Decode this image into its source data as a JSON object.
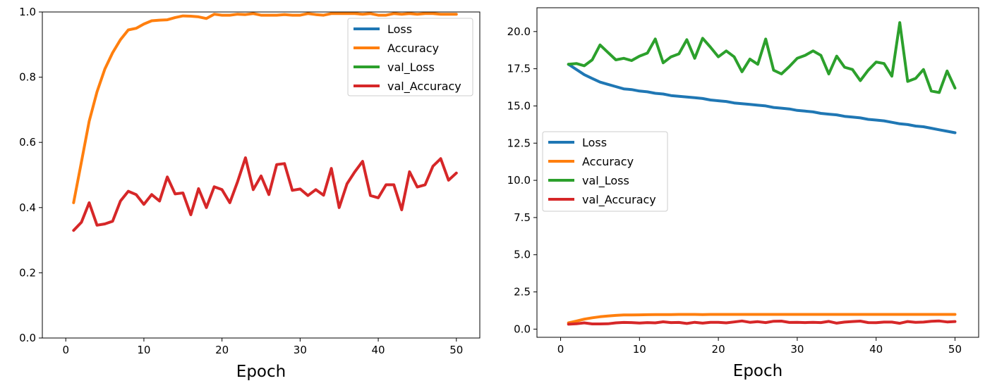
{
  "colors": {
    "Loss": "#1f77b4",
    "Accuracy": "#ff7f0e",
    "val_Loss": "#2ca02c",
    "val_Accuracy": "#d62728"
  },
  "chart_data": [
    {
      "type": "line",
      "xlabel": "Epoch",
      "ylabel": "",
      "xlim": [
        -3,
        53
      ],
      "ylim": [
        0,
        1.0
      ],
      "xticks": [
        0,
        10,
        20,
        30,
        40,
        50
      ],
      "xtick_labels": [
        "0",
        "10",
        "20",
        "30",
        "40",
        "50"
      ],
      "yticks": [
        0,
        0.2,
        0.4,
        0.6,
        0.8,
        1.0
      ],
      "ytick_labels": [
        "0.0",
        "0.2",
        "0.4",
        "0.6",
        "0.8",
        "1.0"
      ],
      "legend_position": "top-right",
      "legend": [
        "Loss",
        "Accuracy",
        "val_Loss",
        "val_Accuracy"
      ],
      "x": [
        1,
        2,
        3,
        4,
        5,
        6,
        7,
        8,
        9,
        10,
        11,
        12,
        13,
        14,
        15,
        16,
        17,
        18,
        19,
        20,
        21,
        22,
        23,
        24,
        25,
        26,
        27,
        28,
        29,
        30,
        31,
        32,
        33,
        34,
        35,
        36,
        37,
        38,
        39,
        40,
        41,
        42,
        43,
        44,
        45,
        46,
        47,
        48,
        49,
        50
      ],
      "series": [
        {
          "name": "Loss",
          "values": null
        },
        {
          "name": "Accuracy",
          "values": [
            0.415,
            0.54,
            0.665,
            0.755,
            0.825,
            0.875,
            0.915,
            0.945,
            0.95,
            0.963,
            0.973,
            0.975,
            0.976,
            0.983,
            0.988,
            0.987,
            0.985,
            0.98,
            0.993,
            0.99,
            0.99,
            0.993,
            0.992,
            0.995,
            0.99,
            0.99,
            0.99,
            0.992,
            0.99,
            0.99,
            0.995,
            0.992,
            0.99,
            0.995,
            0.995,
            0.995,
            0.995,
            0.993,
            0.995,
            0.99,
            0.99,
            0.995,
            0.993,
            0.995,
            0.993,
            0.995,
            0.995,
            0.993,
            0.993,
            0.993
          ]
        },
        {
          "name": "val_Loss",
          "values": null
        },
        {
          "name": "val_Accuracy",
          "values": [
            0.33,
            0.355,
            0.415,
            0.346,
            0.35,
            0.358,
            0.42,
            0.45,
            0.44,
            0.41,
            0.44,
            0.42,
            0.494,
            0.442,
            0.445,
            0.378,
            0.458,
            0.4,
            0.464,
            0.455,
            0.415,
            0.48,
            0.553,
            0.455,
            0.497,
            0.44,
            0.532,
            0.535,
            0.453,
            0.457,
            0.437,
            0.455,
            0.438,
            0.52,
            0.4,
            0.473,
            0.51,
            0.542,
            0.437,
            0.43,
            0.47,
            0.47,
            0.393,
            0.51,
            0.463,
            0.47,
            0.527,
            0.55,
            0.484,
            0.506
          ]
        }
      ]
    },
    {
      "type": "line",
      "xlabel": "Epoch",
      "ylabel": "",
      "xlim": [
        -3,
        53
      ],
      "ylim": [
        -0.55,
        21.6
      ],
      "xticks": [
        0,
        10,
        20,
        30,
        40,
        50
      ],
      "xtick_labels": [
        "0",
        "10",
        "20",
        "30",
        "40",
        "50"
      ],
      "yticks": [
        0,
        2.5,
        5,
        7.5,
        10,
        12.5,
        15,
        17.5,
        20
      ],
      "ytick_labels": [
        "0.0",
        "2.5",
        "5.0",
        "7.5",
        "10.0",
        "12.5",
        "15.0",
        "17.5",
        "20.0"
      ],
      "legend_position": "center-left",
      "legend": [
        "Loss",
        "Accuracy",
        "val_Loss",
        "val_Accuracy"
      ],
      "x": [
        1,
        2,
        3,
        4,
        5,
        6,
        7,
        8,
        9,
        10,
        11,
        12,
        13,
        14,
        15,
        16,
        17,
        18,
        19,
        20,
        21,
        22,
        23,
        24,
        25,
        26,
        27,
        28,
        29,
        30,
        31,
        32,
        33,
        34,
        35,
        36,
        37,
        38,
        39,
        40,
        41,
        42,
        43,
        44,
        45,
        46,
        47,
        48,
        49,
        50
      ],
      "series": [
        {
          "name": "Loss",
          "values": [
            17.8,
            17.45,
            17.1,
            16.85,
            16.6,
            16.45,
            16.3,
            16.15,
            16.1,
            16.0,
            15.95,
            15.85,
            15.8,
            15.7,
            15.65,
            15.6,
            15.55,
            15.5,
            15.4,
            15.35,
            15.3,
            15.2,
            15.15,
            15.1,
            15.05,
            15.0,
            14.9,
            14.85,
            14.8,
            14.7,
            14.65,
            14.6,
            14.5,
            14.45,
            14.4,
            14.3,
            14.25,
            14.2,
            14.1,
            14.05,
            14.0,
            13.9,
            13.8,
            13.75,
            13.65,
            13.6,
            13.5,
            13.4,
            13.3,
            13.2
          ]
        },
        {
          "name": "Accuracy",
          "values": [
            0.42,
            0.54,
            0.67,
            0.76,
            0.83,
            0.88,
            0.92,
            0.95,
            0.95,
            0.96,
            0.97,
            0.98,
            0.98,
            0.98,
            0.99,
            0.99,
            0.99,
            0.98,
            0.99,
            0.99,
            0.99,
            0.99,
            0.99,
            0.99,
            0.99,
            0.99,
            0.99,
            0.99,
            0.99,
            0.99,
            0.99,
            0.99,
            0.99,
            0.99,
            0.99,
            0.99,
            0.99,
            0.99,
            0.99,
            0.99,
            0.99,
            0.99,
            0.99,
            0.99,
            0.99,
            0.99,
            0.99,
            0.99,
            0.99,
            0.99
          ]
        },
        {
          "name": "val_Loss",
          "values": [
            17.8,
            17.85,
            17.7,
            18.1,
            19.1,
            18.6,
            18.1,
            18.2,
            18.05,
            18.35,
            18.55,
            19.5,
            17.9,
            18.3,
            18.5,
            19.45,
            18.2,
            19.55,
            18.95,
            18.3,
            18.7,
            18.3,
            17.3,
            18.15,
            17.8,
            19.5,
            17.4,
            17.15,
            17.65,
            18.2,
            18.4,
            18.7,
            18.4,
            17.15,
            18.35,
            17.6,
            17.45,
            16.7,
            17.4,
            17.95,
            17.85,
            17.0,
            20.6,
            16.65,
            16.85,
            17.45,
            16.0,
            15.9,
            17.35,
            16.2
          ]
        },
        {
          "name": "val_Accuracy",
          "values": [
            0.33,
            0.36,
            0.42,
            0.35,
            0.35,
            0.36,
            0.42,
            0.45,
            0.44,
            0.41,
            0.44,
            0.42,
            0.49,
            0.44,
            0.45,
            0.38,
            0.46,
            0.4,
            0.46,
            0.46,
            0.42,
            0.48,
            0.55,
            0.46,
            0.5,
            0.44,
            0.53,
            0.54,
            0.45,
            0.46,
            0.44,
            0.46,
            0.44,
            0.52,
            0.4,
            0.47,
            0.51,
            0.54,
            0.44,
            0.43,
            0.47,
            0.47,
            0.39,
            0.51,
            0.46,
            0.47,
            0.53,
            0.55,
            0.48,
            0.51
          ]
        }
      ]
    }
  ]
}
